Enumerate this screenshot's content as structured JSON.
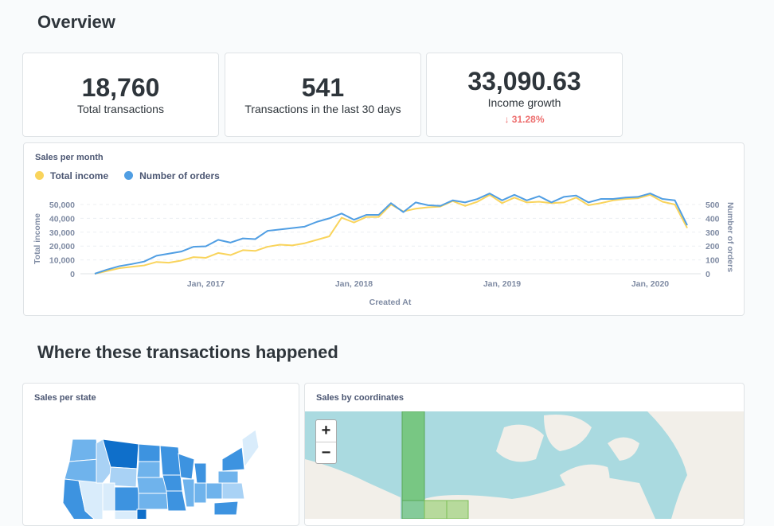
{
  "overview_title": "Overview",
  "kpis": [
    {
      "value": "18,760",
      "label": "Total transactions"
    },
    {
      "value": "541",
      "label": "Transactions in the last 30 days"
    },
    {
      "value": "33,090.63",
      "label": "Income growth",
      "delta": "↓ 31.28%",
      "delta_direction": "down",
      "delta_color": "#ed6e6e"
    }
  ],
  "chart_data": {
    "type": "line",
    "title": "Sales per month",
    "xlabel": "Created At",
    "ylabel": "Total income",
    "y2label": "Number of orders",
    "x_start": "2016-04",
    "x_ticks": [
      "Jan, 2017",
      "Jan, 2018",
      "Jan, 2019",
      "Jan, 2020"
    ],
    "y_ticks": [
      "0",
      "10,000",
      "20,000",
      "30,000",
      "40,000",
      "50,000"
    ],
    "y2_ticks": [
      "0",
      "100",
      "200",
      "300",
      "400",
      "500"
    ],
    "ylim": [
      0,
      50000
    ],
    "y2lim": [
      0,
      500
    ],
    "grid": true,
    "legend": "top-left",
    "series": [
      {
        "name": "Total income",
        "color": "#f9d45c",
        "axis": "left",
        "values": [
          0,
          2000,
          4000,
          5000,
          6000,
          8500,
          8000,
          9500,
          12000,
          11500,
          15000,
          13500,
          17000,
          16500,
          19500,
          21000,
          20500,
          22000,
          24500,
          27000,
          40500,
          37000,
          41000,
          41000,
          50000,
          45000,
          47000,
          48000,
          48500,
          52500,
          49000,
          52000,
          57000,
          51000,
          55000,
          51500,
          52000,
          51000,
          51500,
          55000,
          49500,
          51000,
          53000,
          54000,
          54500,
          57000,
          52000,
          50000,
          33000
        ]
      },
      {
        "name": "Number of orders",
        "color": "#509ee3",
        "axis": "right",
        "values": [
          0,
          30,
          55,
          70,
          88,
          130,
          145,
          160,
          195,
          198,
          245,
          225,
          255,
          250,
          310,
          320,
          330,
          340,
          375,
          400,
          435,
          390,
          425,
          425,
          510,
          445,
          515,
          495,
          490,
          530,
          515,
          540,
          580,
          530,
          570,
          530,
          560,
          515,
          555,
          565,
          515,
          540,
          540,
          550,
          555,
          580,
          540,
          530,
          350
        ]
      }
    ]
  },
  "where_title": "Where these transactions happened",
  "state_map": {
    "title": "Sales per state",
    "colors": [
      "#d9ecfb",
      "#a9d2f5",
      "#6fb3ec",
      "#3d93e0",
      "#0f6fca"
    ]
  },
  "coord_map": {
    "title": "Sales by coordinates",
    "zoom_in": "+",
    "zoom_out": "−",
    "water": "#aadae0",
    "land": "#f2efe9",
    "bin_color": "#6cc26b"
  }
}
